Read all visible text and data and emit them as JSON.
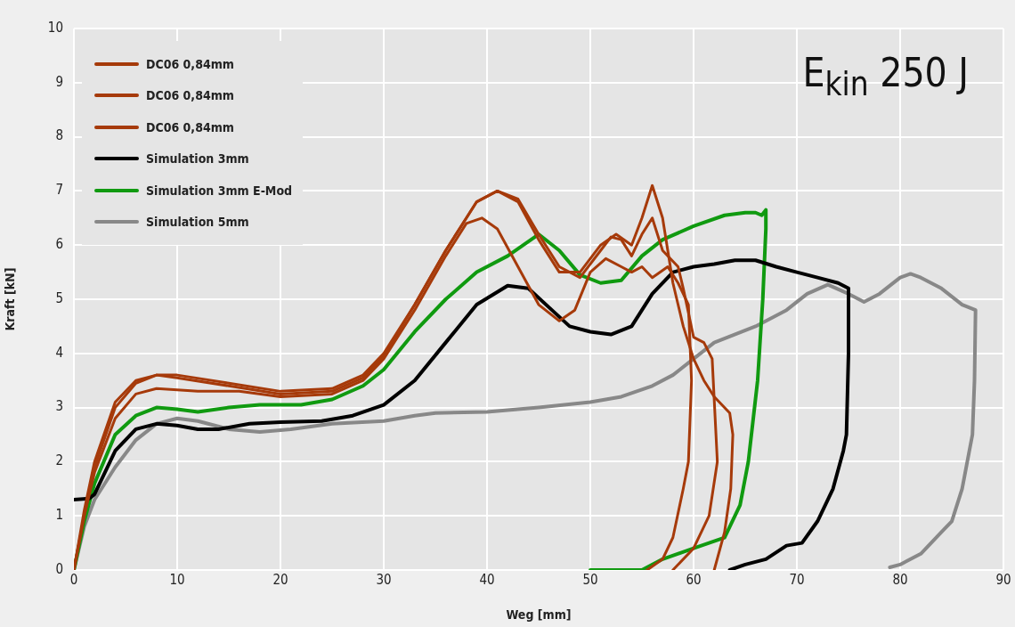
{
  "chart_data": {
    "type": "line",
    "xlabel": "Weg [mm]",
    "ylabel": "Kraft [kN]",
    "annotations": [
      "E$_{kin}$ 250 J"
    ],
    "xlim": [
      0,
      90
    ],
    "xticks": [
      0,
      10,
      20,
      30,
      40,
      50,
      60,
      70,
      80,
      90
    ],
    "ylim": [
      0,
      10
    ],
    "yticks": [
      0,
      1,
      2,
      3,
      4,
      5,
      6,
      7,
      8,
      9,
      10
    ],
    "grid": true,
    "legend": "top left",
    "series": [
      {
        "name": "DC06 0,84mm",
        "color": "#a63a0a",
        "x": [
          0,
          1,
          2,
          4,
          6,
          8,
          10,
          15,
          20,
          25,
          28,
          30,
          33,
          36,
          39,
          41,
          43,
          45,
          47,
          49,
          51,
          52.5,
          54,
          55,
          56,
          57,
          58,
          59,
          60,
          61,
          62,
          63.5,
          63.8,
          63.6,
          63,
          62
        ],
        "values": [
          0,
          1.0,
          1.9,
          3.0,
          3.45,
          3.6,
          3.6,
          3.45,
          3.3,
          3.35,
          3.6,
          4.0,
          4.9,
          5.9,
          6.8,
          7.0,
          6.8,
          6.1,
          5.5,
          5.5,
          6.0,
          6.2,
          6.0,
          6.5,
          7.1,
          6.5,
          5.3,
          4.5,
          3.9,
          3.5,
          3.2,
          2.9,
          2.5,
          1.5,
          0.7,
          0
        ]
      },
      {
        "name": "DC06 0,84mm",
        "color": "#a63a0a",
        "x": [
          0,
          1,
          2,
          4,
          6,
          8,
          10,
          15,
          20,
          25,
          28,
          30,
          33,
          36,
          39,
          41,
          43,
          45,
          47,
          49,
          51,
          52,
          53,
          54,
          55,
          56,
          57,
          58.5,
          59,
          60,
          61,
          61.8,
          62.3,
          61.5,
          60,
          58
        ],
        "values": [
          0,
          1.1,
          2.0,
          3.1,
          3.5,
          3.6,
          3.55,
          3.4,
          3.25,
          3.3,
          3.55,
          3.95,
          4.9,
          5.9,
          6.8,
          7.0,
          6.85,
          6.2,
          5.6,
          5.4,
          5.9,
          6.15,
          6.1,
          5.8,
          6.2,
          6.5,
          5.9,
          5.6,
          5.2,
          4.3,
          4.2,
          3.9,
          2.0,
          1.0,
          0.4,
          0
        ]
      },
      {
        "name": "DC06 0,84mm",
        "color": "#a63a0a",
        "x": [
          0,
          1,
          2,
          4,
          6,
          8,
          12,
          16,
          20,
          25,
          28,
          30,
          33,
          36,
          38,
          39.5,
          41,
          43,
          45,
          47,
          48.5,
          50,
          51.5,
          53,
          54,
          55,
          56,
          57.5,
          58.5,
          59.5,
          59.8,
          59.5,
          59,
          58,
          57,
          55.5
        ],
        "values": [
          0,
          1.0,
          1.8,
          2.8,
          3.25,
          3.35,
          3.3,
          3.3,
          3.2,
          3.25,
          3.5,
          3.9,
          4.8,
          5.8,
          6.4,
          6.5,
          6.3,
          5.6,
          4.9,
          4.6,
          4.8,
          5.5,
          5.75,
          5.6,
          5.5,
          5.6,
          5.4,
          5.6,
          5.3,
          4.9,
          3.5,
          2.0,
          1.5,
          0.6,
          0.2,
          0
        ]
      },
      {
        "name": "Simulation 3mm",
        "color": "#000000",
        "x": [
          0,
          1.5,
          2,
          4,
          6,
          8,
          10,
          12,
          14,
          17,
          20,
          24,
          27,
          30,
          33,
          36,
          39,
          42,
          44,
          46,
          48,
          50,
          52,
          54,
          56,
          58,
          60,
          62,
          64,
          66,
          68,
          70,
          72,
          74,
          75,
          75,
          74.8,
          74.5,
          73.5,
          72,
          70.5,
          69,
          67,
          65,
          63.5
        ],
        "values": [
          1.3,
          1.32,
          1.4,
          2.2,
          2.6,
          2.7,
          2.67,
          2.6,
          2.6,
          2.7,
          2.73,
          2.75,
          2.85,
          3.05,
          3.5,
          4.2,
          4.9,
          5.25,
          5.2,
          4.85,
          4.5,
          4.4,
          4.35,
          4.5,
          5.1,
          5.5,
          5.6,
          5.65,
          5.72,
          5.72,
          5.6,
          5.5,
          5.4,
          5.3,
          5.2,
          4.0,
          2.5,
          2.2,
          1.5,
          0.9,
          0.5,
          0.45,
          0.2,
          0.1,
          0
        ]
      },
      {
        "name": "Simulation 3mm E-Mod",
        "color": "#109a10",
        "x": [
          0,
          1,
          2,
          4,
          6,
          8,
          10,
          12,
          15,
          18,
          22,
          25,
          28,
          30,
          33,
          36,
          39,
          42,
          45,
          47,
          49,
          51,
          53,
          55,
          57,
          60,
          63,
          65,
          66,
          66.6,
          67,
          67,
          66.7,
          66.2,
          65.3,
          64.5,
          63,
          60,
          57,
          55,
          50
        ],
        "values": [
          0,
          0.9,
          1.6,
          2.5,
          2.85,
          3.0,
          2.97,
          2.92,
          3.0,
          3.05,
          3.05,
          3.15,
          3.4,
          3.7,
          4.4,
          5.0,
          5.5,
          5.8,
          6.2,
          5.9,
          5.45,
          5.3,
          5.35,
          5.8,
          6.1,
          6.35,
          6.55,
          6.6,
          6.6,
          6.55,
          6.65,
          6.3,
          5.0,
          3.5,
          2.0,
          1.2,
          0.6,
          0.4,
          0.2,
          0,
          0
        ]
      },
      {
        "name": "Simulation 5mm",
        "color": "#888888",
        "x": [
          0,
          1,
          2,
          4,
          6,
          8,
          10,
          12,
          15,
          18,
          21,
          25,
          30,
          33,
          35,
          40,
          45,
          50,
          53,
          56,
          58,
          60,
          62,
          66,
          69,
          71,
          73,
          75,
          76.5,
          78,
          80,
          81,
          82,
          84,
          86,
          87.3,
          87.2,
          87,
          86,
          85,
          84,
          83,
          82,
          80,
          79
        ],
        "values": [
          0,
          0.8,
          1.3,
          1.9,
          2.4,
          2.7,
          2.8,
          2.75,
          2.6,
          2.55,
          2.6,
          2.7,
          2.75,
          2.85,
          2.9,
          2.92,
          3.0,
          3.1,
          3.2,
          3.4,
          3.6,
          3.9,
          4.2,
          4.5,
          4.8,
          5.1,
          5.27,
          5.1,
          4.95,
          5.1,
          5.4,
          5.47,
          5.4,
          5.2,
          4.9,
          4.8,
          3.5,
          2.5,
          1.5,
          0.9,
          0.7,
          0.5,
          0.3,
          0.1,
          0.05
        ]
      }
    ]
  }
}
